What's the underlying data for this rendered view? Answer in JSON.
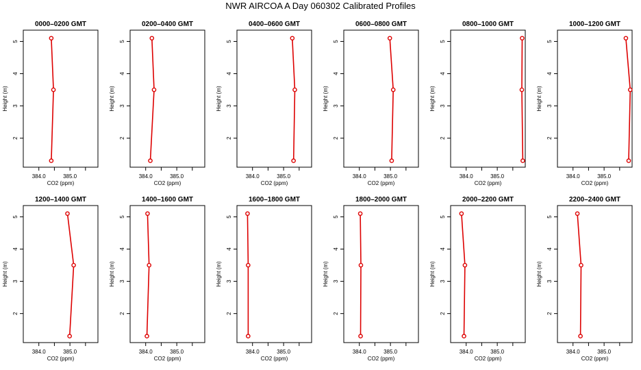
{
  "title": "NWR AIRCOA A  Day 060302  Calibrated Profiles",
  "colors": {
    "profile": "#dd0000",
    "axis": "#000000",
    "background": "#ffffff"
  },
  "chart_data": [
    {
      "type": "line",
      "title": "0000–0200 GMT",
      "xlabel": "CO2 (ppm)",
      "ylabel": "Height (m)",
      "xlim": [
        383.5,
        385.9
      ],
      "ylim": [
        1.1,
        5.35
      ],
      "xticks": [
        384.0,
        384.5,
        385.0,
        385.5
      ],
      "xticklabels": [
        "384.0",
        "",
        "385.0",
        ""
      ],
      "yticks": [
        2,
        3,
        4,
        5
      ],
      "points": [
        {
          "x": 384.4,
          "y": 1.3
        },
        {
          "x": 384.47,
          "y": 3.5
        },
        {
          "x": 384.4,
          "y": 5.1
        }
      ]
    },
    {
      "type": "line",
      "title": "0200–0400 GMT",
      "xlabel": "CO2 (ppm)",
      "ylabel": "Height (m)",
      "xlim": [
        383.5,
        385.9
      ],
      "ylim": [
        1.1,
        5.35
      ],
      "xticks": [
        384.0,
        384.5,
        385.0,
        385.5
      ],
      "xticklabels": [
        "384.0",
        "",
        "385.0",
        ""
      ],
      "yticks": [
        2,
        3,
        4,
        5
      ],
      "points": [
        {
          "x": 384.15,
          "y": 1.3
        },
        {
          "x": 384.27,
          "y": 3.5
        },
        {
          "x": 384.2,
          "y": 5.1
        }
      ]
    },
    {
      "type": "line",
      "title": "0400–0600 GMT",
      "xlabel": "CO2 (ppm)",
      "ylabel": "Height (m)",
      "xlim": [
        383.5,
        385.9
      ],
      "ylim": [
        1.1,
        5.35
      ],
      "xticks": [
        384.0,
        384.5,
        385.0,
        385.5
      ],
      "xticklabels": [
        "384.0",
        "",
        "385.0",
        ""
      ],
      "yticks": [
        2,
        3,
        4,
        5
      ],
      "points": [
        {
          "x": 385.32,
          "y": 1.3
        },
        {
          "x": 385.36,
          "y": 3.5
        },
        {
          "x": 385.28,
          "y": 5.1
        }
      ]
    },
    {
      "type": "line",
      "title": "0600–0800 GMT",
      "xlabel": "CO2 (ppm)",
      "ylabel": "Height (m)",
      "xlim": [
        383.5,
        385.9
      ],
      "ylim": [
        1.1,
        5.35
      ],
      "xticks": [
        384.0,
        384.5,
        385.0,
        385.5
      ],
      "xticklabels": [
        "384.0",
        "",
        "385.0",
        ""
      ],
      "yticks": [
        2,
        3,
        4,
        5
      ],
      "points": [
        {
          "x": 385.04,
          "y": 1.3
        },
        {
          "x": 385.09,
          "y": 3.5
        },
        {
          "x": 384.98,
          "y": 5.1
        }
      ]
    },
    {
      "type": "line",
      "title": "0800–1000 GMT",
      "xlabel": "CO2 (ppm)",
      "ylabel": "Height (m)",
      "xlim": [
        383.5,
        385.9
      ],
      "ylim": [
        1.1,
        5.35
      ],
      "xticks": [
        384.0,
        384.5,
        385.0,
        385.5
      ],
      "xticklabels": [
        "384.0",
        "",
        "385.0",
        ""
      ],
      "yticks": [
        2,
        3,
        4,
        5
      ],
      "points": [
        {
          "x": 385.82,
          "y": 1.3
        },
        {
          "x": 385.79,
          "y": 3.5
        },
        {
          "x": 385.8,
          "y": 5.1
        }
      ]
    },
    {
      "type": "line",
      "title": "1000–1200 GMT",
      "xlabel": "CO2 (ppm)",
      "ylabel": "Height (m)",
      "xlim": [
        383.5,
        385.9
      ],
      "ylim": [
        1.1,
        5.35
      ],
      "xticks": [
        384.0,
        384.5,
        385.0,
        385.5
      ],
      "xticklabels": [
        "384.0",
        "",
        "385.0",
        ""
      ],
      "yticks": [
        2,
        3,
        4,
        5
      ],
      "points": [
        {
          "x": 385.79,
          "y": 1.3
        },
        {
          "x": 385.84,
          "y": 3.5
        },
        {
          "x": 385.7,
          "y": 5.1
        }
      ]
    },
    {
      "type": "line",
      "title": "1200–1400 GMT",
      "xlabel": "CO2 (ppm)",
      "ylabel": "Height (m)",
      "xlim": [
        383.5,
        385.9
      ],
      "ylim": [
        1.1,
        5.35
      ],
      "xticks": [
        384.0,
        384.5,
        385.0,
        385.5
      ],
      "xticklabels": [
        "384.0",
        "",
        "385.0",
        ""
      ],
      "yticks": [
        2,
        3,
        4,
        5
      ],
      "points": [
        {
          "x": 384.99,
          "y": 1.3
        },
        {
          "x": 385.12,
          "y": 3.5
        },
        {
          "x": 384.92,
          "y": 5.1
        }
      ]
    },
    {
      "type": "line",
      "title": "1400–1600 GMT",
      "xlabel": "CO2 (ppm)",
      "ylabel": "Height (m)",
      "xlim": [
        383.5,
        385.9
      ],
      "ylim": [
        1.1,
        5.35
      ],
      "xticks": [
        384.0,
        384.5,
        385.0,
        385.5
      ],
      "xticklabels": [
        "384.0",
        "",
        "385.0",
        ""
      ],
      "yticks": [
        2,
        3,
        4,
        5
      ],
      "points": [
        {
          "x": 384.04,
          "y": 1.3
        },
        {
          "x": 384.11,
          "y": 3.5
        },
        {
          "x": 384.06,
          "y": 5.1
        }
      ]
    },
    {
      "type": "line",
      "title": "1600–1800 GMT",
      "xlabel": "CO2 (ppm)",
      "ylabel": "Height (m)",
      "xlim": [
        383.5,
        385.9
      ],
      "ylim": [
        1.1,
        5.35
      ],
      "xticks": [
        384.0,
        384.5,
        385.0,
        385.5
      ],
      "xticklabels": [
        "384.0",
        "",
        "385.0",
        ""
      ],
      "yticks": [
        2,
        3,
        4,
        5
      ],
      "points": [
        {
          "x": 383.86,
          "y": 1.3
        },
        {
          "x": 383.86,
          "y": 3.5
        },
        {
          "x": 383.84,
          "y": 5.1
        }
      ]
    },
    {
      "type": "line",
      "title": "1800–2000 GMT",
      "xlabel": "CO2 (ppm)",
      "ylabel": "Height (m)",
      "xlim": [
        383.5,
        385.9
      ],
      "ylim": [
        1.1,
        5.35
      ],
      "xticks": [
        384.0,
        384.5,
        385.0,
        385.5
      ],
      "xticklabels": [
        "384.0",
        "",
        "385.0",
        ""
      ],
      "yticks": [
        2,
        3,
        4,
        5
      ],
      "points": [
        {
          "x": 384.04,
          "y": 1.3
        },
        {
          "x": 384.05,
          "y": 3.5
        },
        {
          "x": 384.03,
          "y": 5.1
        }
      ]
    },
    {
      "type": "line",
      "title": "2000–2200 GMT",
      "xlabel": "CO2 (ppm)",
      "ylabel": "Height (m)",
      "xlim": [
        383.5,
        385.9
      ],
      "ylim": [
        1.1,
        5.35
      ],
      "xticks": [
        384.0,
        384.5,
        385.0,
        385.5
      ],
      "xticklabels": [
        "384.0",
        "",
        "385.0",
        ""
      ],
      "yticks": [
        2,
        3,
        4,
        5
      ],
      "points": [
        {
          "x": 383.93,
          "y": 1.3
        },
        {
          "x": 383.96,
          "y": 3.5
        },
        {
          "x": 383.85,
          "y": 5.1
        }
      ]
    },
    {
      "type": "line",
      "title": "2200–2400 GMT",
      "xlabel": "CO2 (ppm)",
      "ylabel": "Height (m)",
      "xlim": [
        383.5,
        385.9
      ],
      "ylim": [
        1.1,
        5.35
      ],
      "xticks": [
        384.0,
        384.5,
        385.0,
        385.5
      ],
      "xticklabels": [
        "384.0",
        "",
        "385.0",
        ""
      ],
      "yticks": [
        2,
        3,
        4,
        5
      ],
      "points": [
        {
          "x": 384.24,
          "y": 1.3
        },
        {
          "x": 384.26,
          "y": 3.5
        },
        {
          "x": 384.14,
          "y": 5.1
        }
      ]
    }
  ]
}
